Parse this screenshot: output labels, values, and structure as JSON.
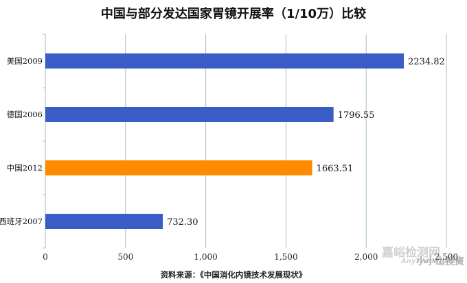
{
  "chart_data": {
    "type": "bar",
    "orientation": "horizontal",
    "title": "中国与部分发达国家胃镜开展率（1/10万）比较",
    "categories": [
      "美国2009",
      "德国2006",
      "中国2012",
      "西班牙2007"
    ],
    "values": [
      2234.82,
      1796.55,
      1663.51,
      732.3
    ],
    "value_labels": [
      "2234.82",
      "1796.55",
      "1663.51",
      "732.30"
    ],
    "bar_colors": [
      "#3a5cc6",
      "#3a5cc6",
      "#ff8c00",
      "#3a5cc6"
    ],
    "xlim": [
      0,
      2500
    ],
    "xticks": [
      0,
      500,
      1000,
      1500,
      2000,
      2500
    ],
    "xtick_labels": [
      "0",
      "500",
      "1,000",
      "1,500",
      "2,000",
      "2,500"
    ],
    "grid": "vertical",
    "legend": "none",
    "source": "资料来源：《中国消化内镜技术发展现状》"
  },
  "watermarks": [
    "嘉峪检测网",
    "AnyTesting.com",
    "小小山投资"
  ]
}
